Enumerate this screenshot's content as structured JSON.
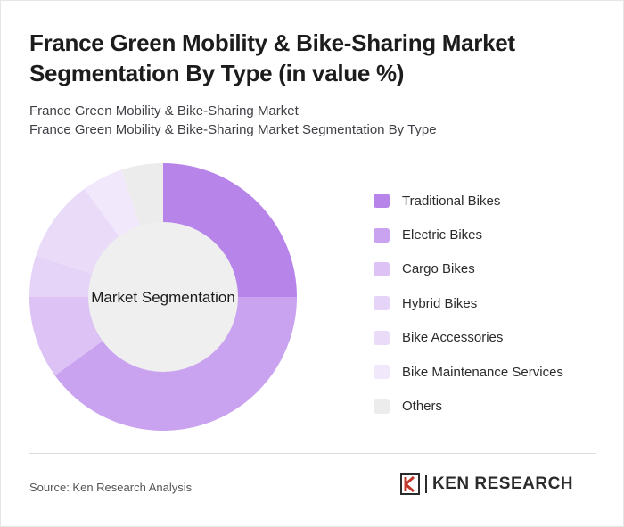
{
  "title": "France Green Mobility & Bike-Sharing Market Segmentation By Type (in value %)",
  "subtitle_line1": "France Green Mobility & Bike-Sharing Market",
  "subtitle_line2": "France Green Mobility & Bike-Sharing Market Segmentation By Type",
  "source": "Source: Ken Research Analysis",
  "logo_text": "KEN RESEARCH",
  "chart_data": {
    "type": "donut",
    "center_label": "Market Segmentation",
    "legend_position": "right",
    "slices": [
      {
        "name": "Traditional Bikes",
        "value": 25,
        "color": "#b785ea"
      },
      {
        "name": "Electric Bikes",
        "value": 40,
        "color": "#c9a2f0"
      },
      {
        "name": "Cargo Bikes",
        "value": 10,
        "color": "#dcc2f5"
      },
      {
        "name": "Hybrid Bikes",
        "value": 5,
        "color": "#e6d3f8"
      },
      {
        "name": "Bike Accessories",
        "value": 10,
        "color": "#eadcf9"
      },
      {
        "name": "Bike Maintenance Services",
        "value": 5,
        "color": "#f1e8fb"
      },
      {
        "name": "Others",
        "value": 5,
        "color": "#ececec"
      }
    ]
  }
}
